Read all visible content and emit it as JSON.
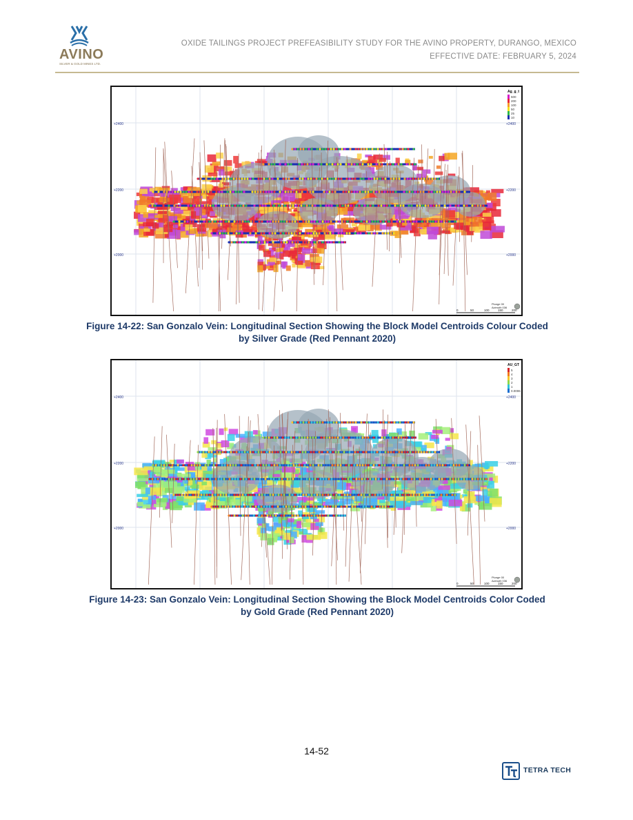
{
  "header": {
    "logo_word": "AVINO",
    "logo_tagline": "SILVER & GOLD MINES LTD.",
    "line1": "OXIDE TAILINGS PROJECT PREFEASIBILITY STUDY FOR THE AVINO PROPERTY, DURANGO, MEXICO",
    "line2": "EFFECTIVE DATE: FEBRUARY 5, 2024"
  },
  "figures": [
    {
      "id": "silver",
      "legend_title": "Ag_g_t",
      "legend_items": [
        {
          "label": "500",
          "color": "#d41ac8"
        },
        {
          "label": "200",
          "color": "#e8283a"
        },
        {
          "label": "100",
          "color": "#f79a2a"
        },
        {
          "label": "50",
          "color": "#f2e01a"
        },
        {
          "label": "25",
          "color": "#2fb84a"
        },
        {
          "label": "10",
          "color": "#1a2fb0"
        }
      ],
      "elevations": [
        "+2400",
        "+2200",
        "+2000"
      ],
      "scale_ticks": [
        "0",
        "50",
        "100",
        "150",
        "200"
      ],
      "plunge": "Plunge 00",
      "azimuth": "Azimuth 036",
      "fill_palette": [
        "#ef3b3b",
        "#f5a623",
        "#f07a2a",
        "#c04ad8",
        "#e8283a",
        "#fbd24a"
      ],
      "caption_line1": "Figure 14-22: San Gonzalo Vein: Longitudinal Section Showing the Block Model Centroids Colour Coded",
      "caption_line2": "by Silver Grade (Red Pennant 2020)"
    },
    {
      "id": "gold",
      "legend_title": "AU_GT",
      "legend_items": [
        {
          "label": "5",
          "color": "#d8262a"
        },
        {
          "label": "4",
          "color": "#f27a1e"
        },
        {
          "label": "3",
          "color": "#f6c528"
        },
        {
          "label": "2",
          "color": "#8fd84a"
        },
        {
          "label": "1",
          "color": "#2fc3d8"
        },
        {
          "label": "0.0006",
          "color": "#1b6fd0"
        }
      ],
      "elevations": [
        "+2400",
        "+2200",
        "+2000"
      ],
      "scale_ticks": [
        "0",
        "50",
        "100",
        "150",
        "200"
      ],
      "plunge": "Plunge 00",
      "azimuth": "Azimuth 036",
      "fill_palette": [
        "#7fe06a",
        "#3ad0e6",
        "#f5e64a",
        "#d04ae0",
        "#4ab0ff",
        "#a4f07a"
      ],
      "caption_line1": "Figure 14-23: San Gonzalo Vein: Longitudinal Section Showing the Block Model Centroids Color Coded",
      "caption_line2": "by Gold Grade (Red Pennant 2020)"
    }
  ],
  "page_number": "14-52",
  "footer": {
    "brand": "TETRA TECH"
  },
  "colors": {
    "caption": "#1e3a68",
    "rule": "#c5b991",
    "logo": "#8c7b5a",
    "tetra_tech": "#1b4e8a"
  }
}
